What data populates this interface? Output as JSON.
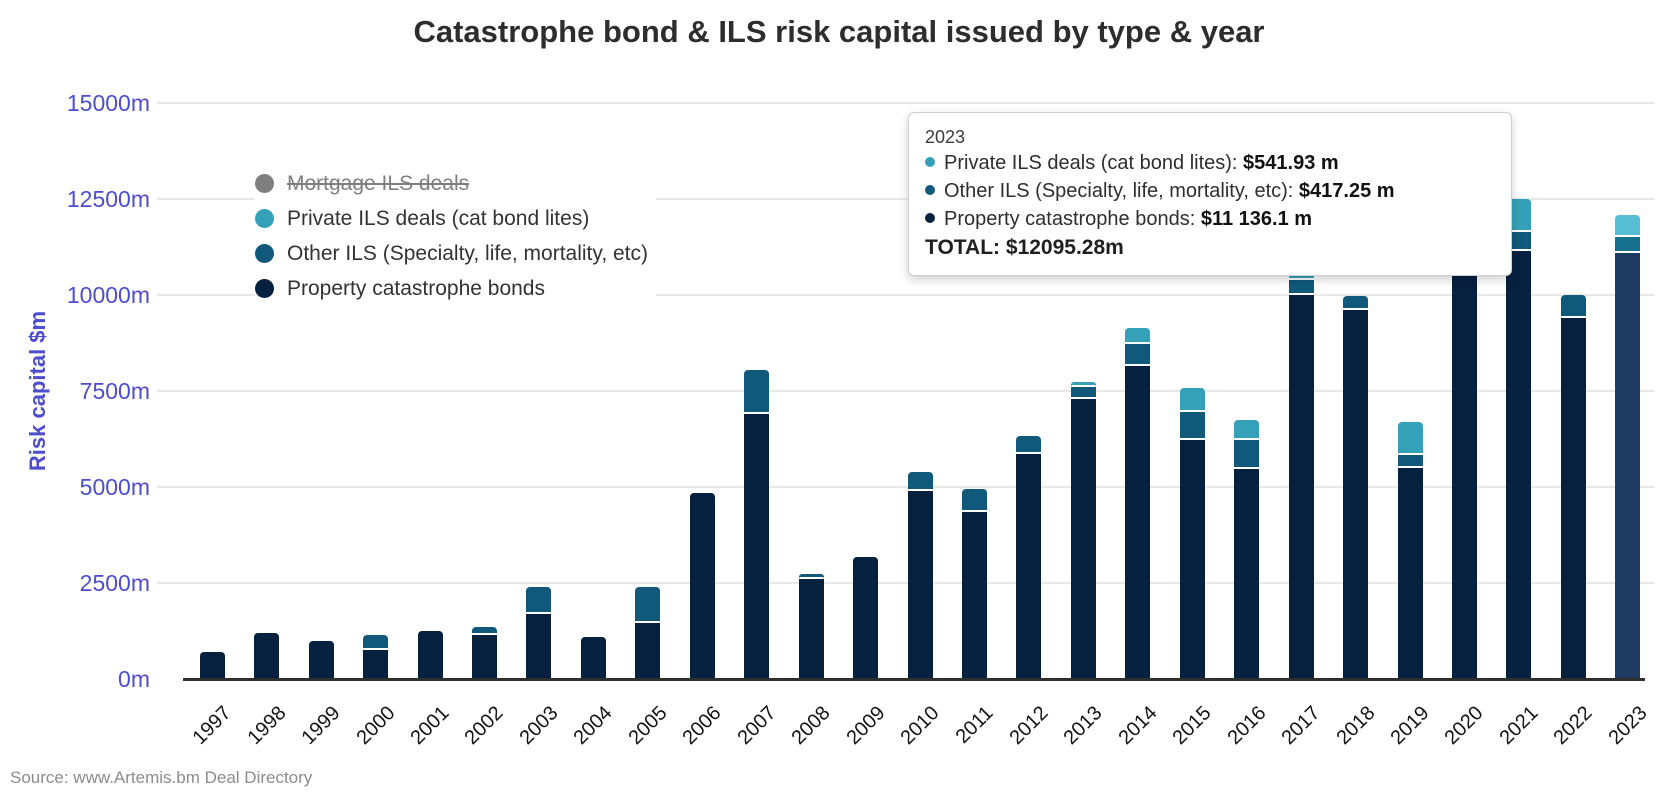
{
  "title": "Catastrophe bond & ILS risk capital issued by type & year",
  "y_axis_title": "Risk capital $m",
  "source_note": "Source: www.Artemis.bm Deal Directory",
  "colors": {
    "axis_label": "#4d4dd0",
    "gridline": "#e8e8e8",
    "axis_line": "#2f2f2f",
    "property": "#06203f",
    "other_ils": "#10597a",
    "private_ils": "#35a1b9",
    "mortgage_disabled": "#7f7f7f",
    "highlight_property": "#1e3c62",
    "highlight_other": "#16708e",
    "highlight_private": "#55bed3"
  },
  "legend": {
    "items": [
      {
        "key": "mortgage-ils",
        "label": "Mortgage ILS deals",
        "color": "#7f7f7f",
        "disabled": true
      },
      {
        "key": "private-ils",
        "label": "Private ILS deals (cat bond lites)",
        "color": "#35a1b9",
        "disabled": false
      },
      {
        "key": "other-ils",
        "label": "Other ILS (Specialty, life, mortality, etc)",
        "color": "#10597a",
        "disabled": false
      },
      {
        "key": "property-cat-bonds",
        "label": "Property catastrophe bonds",
        "color": "#06203f",
        "disabled": false
      }
    ]
  },
  "tooltip": {
    "year": "2023",
    "rows": [
      {
        "label": "Private ILS deals (cat bond lites):",
        "value": "$541.93 m",
        "color": "#35a1b9"
      },
      {
        "label": "Other ILS (Specialty, life, mortality, etc):",
        "value": "$417.25 m",
        "color": "#10597a"
      },
      {
        "label": "Property catastrophe bonds:",
        "value": "$11 136.1 m",
        "color": "#06203f"
      }
    ],
    "total_label": "TOTAL:",
    "total_value": "$12095.28m"
  },
  "chart_data": {
    "type": "bar",
    "stacked": true,
    "title": "Catastrophe bond & ILS risk capital issued by type & year",
    "ylabel": "Risk capital $m",
    "ylim": [
      0,
      15000
    ],
    "grid": "horizontal",
    "grid_values": [
      2500,
      5000,
      7500,
      10000,
      12500,
      15000
    ],
    "y_ticks": [
      {
        "label": "15000m",
        "value": 15000
      },
      {
        "label": "12500m",
        "value": 12500
      },
      {
        "label": "10000m",
        "value": 10000
      },
      {
        "label": "7500m",
        "value": 7500
      },
      {
        "label": "5000m",
        "value": 5000
      },
      {
        "label": "2500m",
        "value": 2500
      },
      {
        "label": "0m",
        "value": 0
      }
    ],
    "categories": [
      "1997",
      "1998",
      "1999",
      "2000",
      "2001",
      "2002",
      "2003",
      "2004",
      "2005",
      "2006",
      "2007",
      "2008",
      "2009",
      "2010",
      "2011",
      "2012",
      "2013",
      "2014",
      "2015",
      "2016",
      "2017",
      "2018",
      "2019",
      "2020",
      "2021",
      "2022",
      "2023"
    ],
    "series": [
      {
        "name": "Property catastrophe bonds",
        "color": "#06203f",
        "highlight_color": "#1e3c62",
        "values": [
          700,
          1200,
          1000,
          800,
          1250,
          1200,
          1750,
          1100,
          1500,
          4850,
          6950,
          2650,
          3180,
          4950,
          4400,
          5900,
          7340,
          8200,
          6270,
          5520,
          10050,
          9650,
          5550,
          10700,
          11200,
          9450,
          11136.1
        ]
      },
      {
        "name": "Other ILS (Specialty, life, mortality, etc)",
        "color": "#10597a",
        "highlight_color": "#16708e",
        "values": [
          0,
          0,
          0,
          350,
          0,
          150,
          650,
          0,
          900,
          0,
          1100,
          80,
          0,
          450,
          550,
          430,
          310,
          575,
          730,
          760,
          400,
          320,
          330,
          300,
          500,
          550,
          417.25
        ]
      },
      {
        "name": "Private ILS deals (cat bond lites)",
        "color": "#35a1b9",
        "highlight_color": "#55bed3",
        "values": [
          0,
          0,
          0,
          0,
          0,
          0,
          0,
          0,
          0,
          0,
          0,
          0,
          0,
          0,
          0,
          0,
          90,
          370,
          580,
          460,
          800,
          0,
          810,
          500,
          800,
          0,
          541.93
        ]
      }
    ],
    "highlight_category": "2023",
    "legend_position": "top-left",
    "tooltip_total_2023": 12095.28
  }
}
